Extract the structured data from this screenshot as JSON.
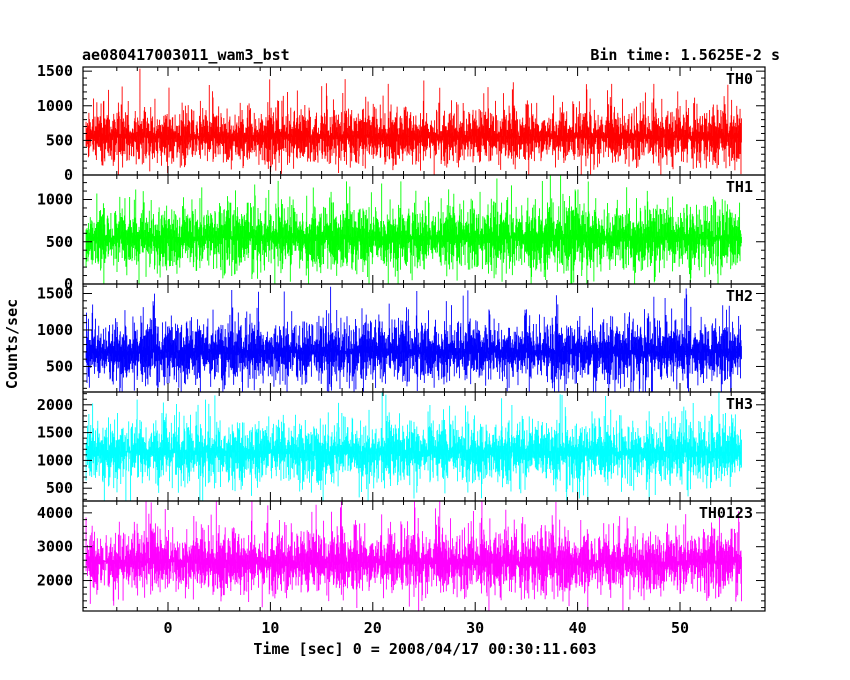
{
  "header": {
    "title": "ae080417003011_wam3_bst",
    "bin_time": "Bin time: 1.5625E-2 s"
  },
  "chart_data": {
    "type": "line",
    "xlabel": "Time [sec] 0 = 2008/04/17 00:30:11.603",
    "ylabel": "Counts/sec",
    "xlim": [
      -8.3,
      58.3
    ],
    "x_range_data": [
      -8,
      56
    ],
    "x_ticks": [
      0,
      10,
      20,
      30,
      40,
      50
    ],
    "x_tick_labels": [
      "0",
      "10",
      "20",
      "30",
      "40",
      "50"
    ],
    "panels": [
      {
        "label": "TH0",
        "color": "#ff0000",
        "ylim": [
          0,
          1560
        ],
        "yticks": [
          0,
          500,
          1000,
          1500
        ],
        "ytick_labels": [
          "0",
          "500",
          "1000",
          "1500"
        ],
        "mean": 560,
        "noise": 210,
        "min": 0,
        "max": 1560
      },
      {
        "label": "TH1",
        "color": "#00ff00",
        "ylim": [
          0,
          1290
        ],
        "yticks": [
          0,
          500,
          1000
        ],
        "ytick_labels": [
          "0",
          "500",
          "1000"
        ],
        "mean": 550,
        "noise": 210,
        "min": 0,
        "max": 1290
      },
      {
        "label": "TH2",
        "color": "#0000ff",
        "ylim": [
          150,
          1630
        ],
        "yticks": [
          500,
          1000,
          1500
        ],
        "ytick_labels": [
          "500",
          "1000",
          "1500"
        ],
        "mean": 700,
        "noise": 230,
        "min": 150,
        "max": 1630
      },
      {
        "label": "TH3",
        "color": "#00ffff",
        "ylim": [
          270,
          2230
        ],
        "yticks": [
          500,
          1000,
          1500,
          2000
        ],
        "ytick_labels": [
          "500",
          "1000",
          "1500",
          "2000"
        ],
        "mean": 1150,
        "noise": 300,
        "min": 270,
        "max": 2230
      },
      {
        "label": "TH0123",
        "color": "#ff00ff",
        "ylim": [
          1100,
          4350
        ],
        "yticks": [
          2000,
          3000,
          4000
        ],
        "ytick_labels": [
          "2000",
          "3000",
          "4000"
        ],
        "mean": 2550,
        "noise": 500,
        "min": 1100,
        "max": 4350
      }
    ]
  }
}
